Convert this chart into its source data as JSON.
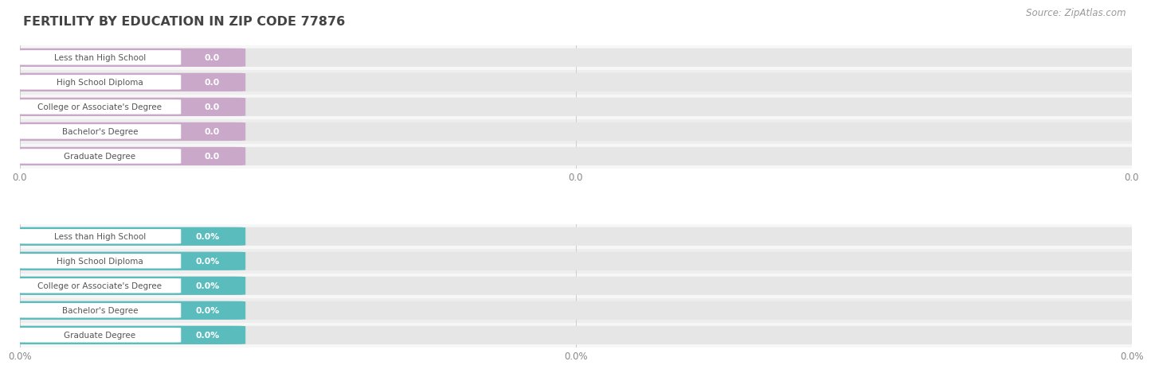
{
  "title": "FERTILITY BY EDUCATION IN ZIP CODE 77876",
  "source": "Source: ZipAtlas.com",
  "categories": [
    "Less than High School",
    "High School Diploma",
    "College or Associate's Degree",
    "Bachelor's Degree",
    "Graduate Degree"
  ],
  "values_top": [
    0.0,
    0.0,
    0.0,
    0.0,
    0.0
  ],
  "values_bottom": [
    0.0,
    0.0,
    0.0,
    0.0,
    0.0
  ],
  "labels_top": [
    "0.0",
    "0.0",
    "0.0",
    "0.0",
    "0.0"
  ],
  "labels_bottom": [
    "0.0%",
    "0.0%",
    "0.0%",
    "0.0%",
    "0.0%"
  ],
  "bar_color_top": "#c9a8c9",
  "bar_color_bottom": "#5bbcbe",
  "bar_bg_color": "#e6e6e6",
  "row_bg_light": "#f7f7f7",
  "row_bg_dark": "#eeeeee",
  "pill_bg": "#ffffff",
  "title_color": "#444444",
  "source_color": "#999999",
  "xtick_labels_top": [
    "0.0",
    "0.0",
    "0.0"
  ],
  "xtick_labels_bot": [
    "0.0%",
    "0.0%",
    "0.0%"
  ],
  "figsize": [
    14.06,
    4.75
  ],
  "dpi": 100
}
